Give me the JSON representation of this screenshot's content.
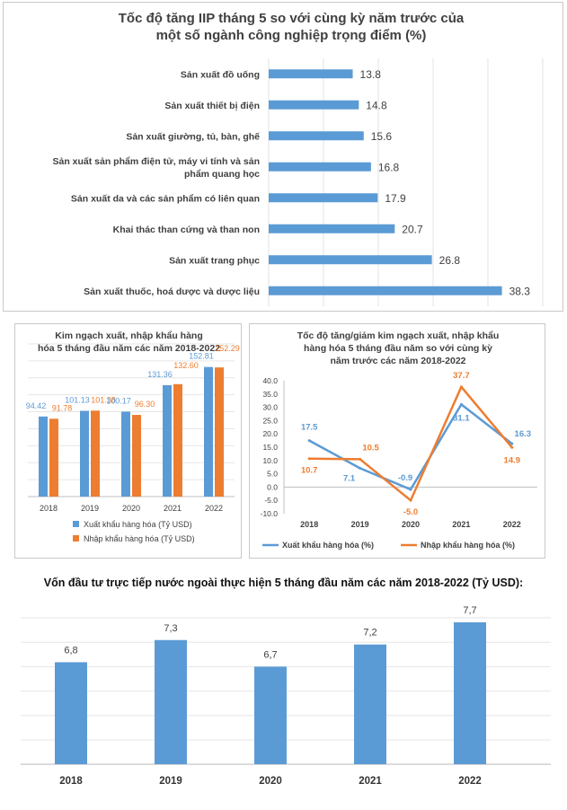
{
  "iip_chart": {
    "title_lines": [
      "Tốc độ tăng IIP tháng 5 so với cùng kỳ năm trước của",
      "một số ngành công nghiệp trọng điểm (%)"
    ],
    "chart_data": {
      "type": "bar",
      "orientation": "horizontal",
      "title": "Tốc độ tăng IIP tháng 5 so với cùng kỳ năm trước của một số ngành công nghiệp trọng điểm (%)",
      "categories": [
        "Sản xuất đồ uống",
        "Sản xuất thiết bị điện",
        "Sản xuất giường, tủ, bàn, ghế",
        "Sản xuất sản phẩm điện tử, máy vi tính và sản phẩm quang học",
        "Sản xuất da và các sản phẩm có liên quan",
        "Khai thác than cứng và than non",
        "Sản xuất trang phục",
        "Sản xuất thuốc, hoá dược và dược liệu"
      ],
      "category_label_lines": [
        [
          "Sản xuất đồ uống"
        ],
        [
          "Sản xuất thiết bị điện"
        ],
        [
          "Sản xuất giường, tủ, bàn, ghế"
        ],
        [
          "Sản xuất sản phẩm điện tử, máy vi tính và sản",
          "phẩm quang học"
        ],
        [
          "Sản xuất da và các sản phẩm có liên quan"
        ],
        [
          "Khai thác than cứng và than non"
        ],
        [
          "Sản xuất trang phục"
        ],
        [
          "Sản xuất thuốc, hoá dược và dược liệu"
        ]
      ],
      "values": [
        13.8,
        14.8,
        15.6,
        16.8,
        17.9,
        20.7,
        26.8,
        38.3
      ],
      "value_labels": [
        "13.8",
        "14.8",
        "15.6",
        "16.8",
        "17.9",
        "20.7",
        "26.8",
        "38.3"
      ],
      "grid": true,
      "color": "#5b9bd5"
    }
  },
  "trade_chart": {
    "title_lines": [
      "Kim ngạch xuất, nhập khẩu hàng",
      "hóa 5 tháng đầu năm các năm 2018-2022"
    ],
    "chart_data": {
      "type": "bar",
      "title": "Kim ngạch xuất, nhập khẩu hàng hóa 5 tháng đầu năm các năm 2018-2022",
      "categories": [
        "2018",
        "2019",
        "2020",
        "2021",
        "2022"
      ],
      "series": [
        {
          "name": "Xuất khẩu hàng hóa (Tỷ USD)",
          "values": [
            94.42,
            101.13,
            100.17,
            131.36,
            152.81
          ],
          "labels": [
            "94.42",
            "101.13",
            "100.17",
            "131.36",
            "152.81"
          ],
          "color": "#5b9bd5"
        },
        {
          "name": "Nhập khẩu hàng hóa (Tỷ USD)",
          "values": [
            91.78,
            101.38,
            96.3,
            132.6,
            152.29
          ],
          "labels": [
            "91.78",
            "101.38",
            "96.30",
            "132.60",
            "152.29"
          ],
          "color": "#ed7d31"
        }
      ],
      "ylim": [
        0,
        180
      ],
      "grid": true,
      "legend": "bottom"
    }
  },
  "growth_chart": {
    "title_lines": [
      "Tốc độ tăng/giảm kim ngạch xuất, nhập khẩu",
      "hàng hóa 5 tháng đầu năm so với cùng kỳ",
      "năm trước các năm 2018-2022"
    ],
    "chart_data": {
      "type": "line",
      "title": "Tốc độ tăng/giảm kim ngạch xuất, nhập khẩu hàng hóa 5 tháng đầu năm so với cùng kỳ năm trước các năm 2018-2022",
      "categories": [
        "2018",
        "2019",
        "2020",
        "2021",
        "2022"
      ],
      "series": [
        {
          "name": "Xuất khẩu hàng hóa (%)",
          "values": [
            17.5,
            7.1,
            -0.9,
            31.1,
            16.3
          ],
          "labels": [
            "17.5",
            "7.1",
            "-0.9",
            "31.1",
            "16.3"
          ],
          "color": "#5b9bd5"
        },
        {
          "name": "Nhập khẩu hàng hóa (%)",
          "values": [
            10.7,
            10.5,
            -5.0,
            37.7,
            14.9
          ],
          "labels": [
            "10.7",
            "10.5",
            "-5.0",
            "37.7",
            "14.9"
          ],
          "color": "#ed7d31"
        }
      ],
      "ylim": [
        -10,
        40
      ],
      "yticks": [
        "40.0",
        "35.0",
        "30.0",
        "25.0",
        "20.0",
        "15.0",
        "10.0",
        "5.0",
        "0.0",
        "-5.0",
        "-10.0"
      ],
      "grid": false,
      "legend": "bottom"
    }
  },
  "fdi_chart": {
    "title": "Vốn đầu tư trực tiếp nước ngoài thực hiện 5 tháng đầu năm các năm 2018-2022 (Tỷ USD):",
    "chart_data": {
      "type": "bar",
      "title": "Vốn đầu tư trực tiếp nước ngoài thực hiện 5 tháng đầu năm các năm 2018-2022 (Tỷ USD):",
      "categories": [
        "2018",
        "2019",
        "2020",
        "2021",
        "2022"
      ],
      "values": [
        6.8,
        7.3,
        6.7,
        7.2,
        7.7
      ],
      "value_labels": [
        "6,8",
        "7,3",
        "6,7",
        "7,2",
        "7,7"
      ],
      "grid": true,
      "color": "#5b9bd5"
    }
  }
}
